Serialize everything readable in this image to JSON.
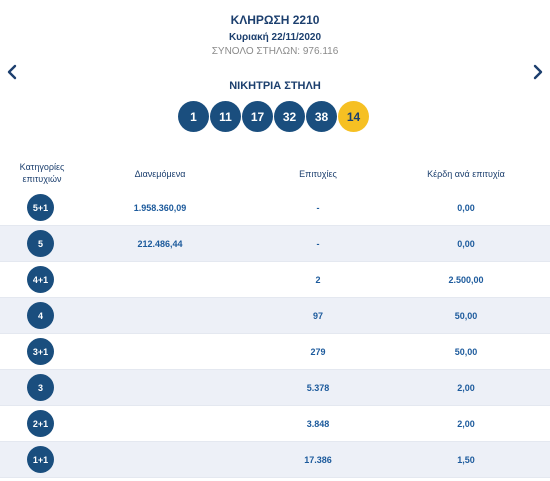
{
  "draw": {
    "title": "ΚΛΗΡΩΣΗ 2210",
    "date": "Κυριακή 22/11/2020",
    "total_columns": "ΣΥΝΟΛΟ ΣΤΗΛΩΝ: 976.116"
  },
  "navigation": {
    "prev_icon": "chevron-left-icon",
    "next_icon": "chevron-right-icon"
  },
  "winning": {
    "title": "ΝΙΚΗΤΡΙΑ ΣΤΗΛΗ",
    "numbers": [
      "1",
      "11",
      "17",
      "32",
      "38"
    ],
    "joker": "14"
  },
  "table": {
    "headers": {
      "category": "Κατηγορίες επιτυχιών",
      "pool": "Διανεμόμενα",
      "winners": "Επιτυχίες",
      "prize": "Κέρδη ανά επιτυχία"
    },
    "rows": [
      {
        "category": "5+1",
        "pool": "1.958.360,09",
        "winners": "-",
        "prize": "0,00"
      },
      {
        "category": "5",
        "pool": "212.486,44",
        "winners": "-",
        "prize": "0,00"
      },
      {
        "category": "4+1",
        "pool": "",
        "winners": "2",
        "prize": "2.500,00"
      },
      {
        "category": "4",
        "pool": "",
        "winners": "97",
        "prize": "50,00"
      },
      {
        "category": "3+1",
        "pool": "",
        "winners": "279",
        "prize": "50,00"
      },
      {
        "category": "3",
        "pool": "",
        "winners": "5.378",
        "prize": "2,00"
      },
      {
        "category": "2+1",
        "pool": "",
        "winners": "3.848",
        "prize": "2,00"
      },
      {
        "category": "1+1",
        "pool": "",
        "winners": "17.386",
        "prize": "1,50"
      }
    ]
  },
  "colors": {
    "ball": "#1a4e7e",
    "joker_ball": "#f6c023",
    "text": "#1c3f6e",
    "row_shade": "#edf0f7"
  }
}
